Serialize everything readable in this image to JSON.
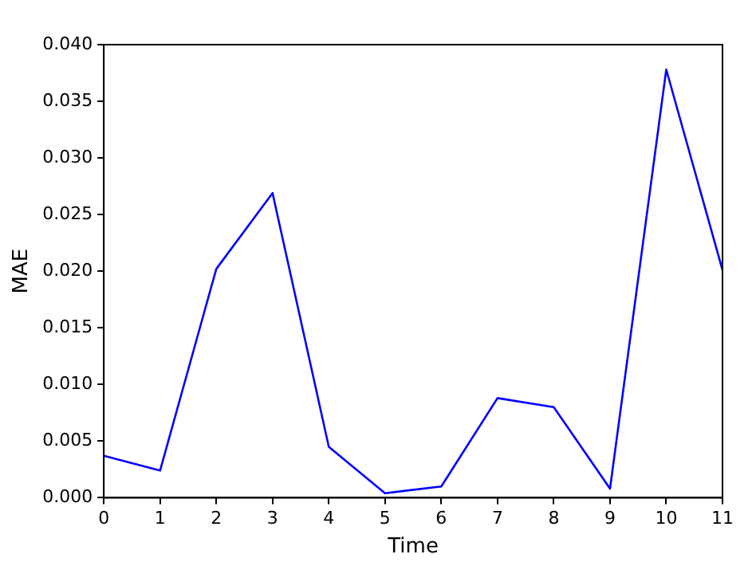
{
  "chart_data": {
    "type": "line",
    "xlabel": "Time",
    "ylabel": "MAE",
    "x": [
      0,
      1,
      2,
      3,
      4,
      5,
      6,
      7,
      8,
      9,
      10,
      11
    ],
    "series": [
      {
        "color": "#0000ff",
        "values": [
          0.0037,
          0.0024,
          0.0202,
          0.0269,
          0.0045,
          0.0004,
          0.001,
          0.0088,
          0.008,
          0.0008,
          0.0378,
          0.0201
        ]
      }
    ],
    "xlim": [
      0,
      11
    ],
    "xticks": [
      0,
      1,
      2,
      3,
      4,
      5,
      6,
      7,
      8,
      9,
      10,
      11
    ],
    "ylim": [
      0,
      0.04
    ],
    "yticks": [
      {
        "value": 0,
        "label": "0.000"
      },
      {
        "value": 0.005,
        "label": "0.005"
      },
      {
        "value": 0.01,
        "label": "0.010"
      },
      {
        "value": 0.015,
        "label": "0.015"
      },
      {
        "value": 0.02,
        "label": "0.020"
      },
      {
        "value": 0.025,
        "label": "0.025"
      },
      {
        "value": 0.03,
        "label": "0.030"
      },
      {
        "value": 0.035,
        "label": "0.035"
      },
      {
        "value": 0.04,
        "label": "0.040"
      }
    ],
    "grid": false,
    "legend": false,
    "marker": "none",
    "line_style": "solid"
  }
}
